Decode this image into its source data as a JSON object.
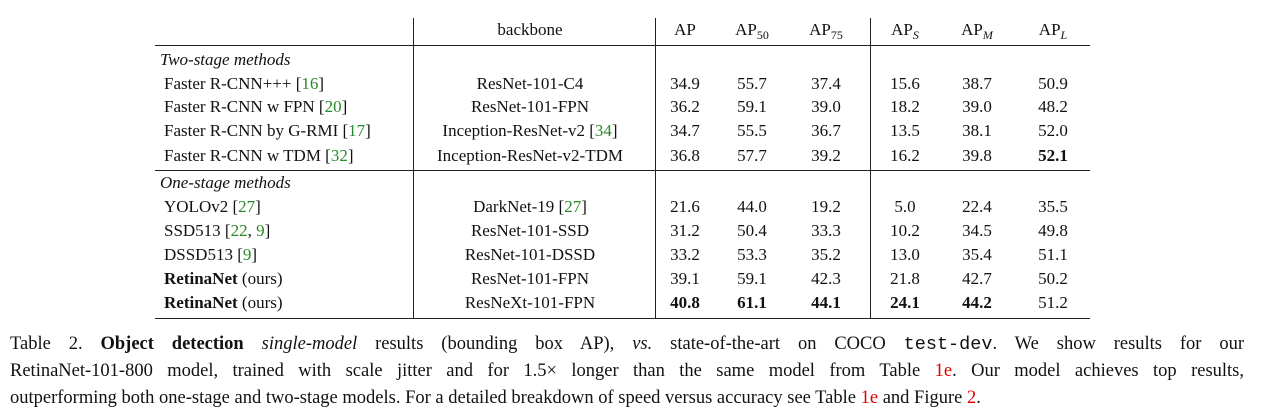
{
  "table": {
    "header": [
      [
        {
          "text": "backbone"
        }
      ],
      [
        {
          "text": "AP"
        }
      ],
      [
        {
          "text": "AP"
        },
        {
          "text": "50",
          "sub": true
        }
      ],
      [
        {
          "text": "AP"
        },
        {
          "text": "75",
          "sub": true
        }
      ],
      [
        {
          "text": "AP"
        },
        {
          "text": "S",
          "sub": true,
          "italic": true
        }
      ],
      [
        {
          "text": "AP"
        },
        {
          "text": "M",
          "sub": true,
          "italic": true
        }
      ],
      [
        {
          "text": "AP"
        },
        {
          "text": "L",
          "sub": true,
          "italic": true
        }
      ]
    ],
    "sections": [
      {
        "title": "Two-stage methods",
        "rows": [
          {
            "method": [
              {
                "text": "Faster R-CNN+++ ["
              },
              {
                "text": "16",
                "link": true
              },
              {
                "text": "]"
              }
            ],
            "backbone": [
              {
                "text": "ResNet-101-C4"
              }
            ],
            "values": [
              "34.9",
              "55.7",
              "37.4",
              "15.6",
              "38.7",
              "50.9"
            ],
            "bold": []
          },
          {
            "method": [
              {
                "text": "Faster R-CNN w FPN ["
              },
              {
                "text": "20",
                "link": true
              },
              {
                "text": "]"
              }
            ],
            "backbone": [
              {
                "text": "ResNet-101-FPN"
              }
            ],
            "values": [
              "36.2",
              "59.1",
              "39.0",
              "18.2",
              "39.0",
              "48.2"
            ],
            "bold": []
          },
          {
            "method": [
              {
                "text": "Faster R-CNN by G-RMI ["
              },
              {
                "text": "17",
                "link": true
              },
              {
                "text": "]"
              }
            ],
            "backbone": [
              {
                "text": "Inception-ResNet-v2 ["
              },
              {
                "text": "34",
                "link": true
              },
              {
                "text": "]"
              }
            ],
            "values": [
              "34.7",
              "55.5",
              "36.7",
              "13.5",
              "38.1",
              "52.0"
            ],
            "bold": []
          },
          {
            "method": [
              {
                "text": "Faster R-CNN w TDM ["
              },
              {
                "text": "32",
                "link": true
              },
              {
                "text": "]"
              }
            ],
            "backbone": [
              {
                "text": "Inception-ResNet-v2-TDM"
              }
            ],
            "values": [
              "36.8",
              "57.7",
              "39.2",
              "16.2",
              "39.8",
              "52.1"
            ],
            "bold": [
              5
            ]
          }
        ]
      },
      {
        "title": "One-stage methods",
        "rows": [
          {
            "method": [
              {
                "text": "YOLOv2 ["
              },
              {
                "text": "27",
                "link": true
              },
              {
                "text": "]"
              }
            ],
            "backbone": [
              {
                "text": "DarkNet-19 ["
              },
              {
                "text": "27",
                "link": true
              },
              {
                "text": "]"
              }
            ],
            "values": [
              "21.6",
              "44.0",
              "19.2",
              "5.0",
              "22.4",
              "35.5"
            ],
            "bold": []
          },
          {
            "method": [
              {
                "text": "SSD513 ["
              },
              {
                "text": "22",
                "link": true
              },
              {
                "text": ", "
              },
              {
                "text": "9",
                "link": true
              },
              {
                "text": "]"
              }
            ],
            "backbone": [
              {
                "text": "ResNet-101-SSD"
              }
            ],
            "values": [
              "31.2",
              "50.4",
              "33.3",
              "10.2",
              "34.5",
              "49.8"
            ],
            "bold": []
          },
          {
            "method": [
              {
                "text": "DSSD513 ["
              },
              {
                "text": "9",
                "link": true
              },
              {
                "text": "]"
              }
            ],
            "backbone": [
              {
                "text": "ResNet-101-DSSD"
              }
            ],
            "values": [
              "33.2",
              "53.3",
              "35.2",
              "13.0",
              "35.4",
              "51.1"
            ],
            "bold": []
          },
          {
            "method": [
              {
                "text": "RetinaNet",
                "bold": true
              },
              {
                "text": " (ours)"
              }
            ],
            "backbone": [
              {
                "text": "ResNet-101-FPN"
              }
            ],
            "values": [
              "39.1",
              "59.1",
              "42.3",
              "21.8",
              "42.7",
              "50.2"
            ],
            "bold": []
          },
          {
            "method": [
              {
                "text": "RetinaNet",
                "bold": true
              },
              {
                "text": " (ours)"
              }
            ],
            "backbone": [
              {
                "text": "ResNeXt-101-FPN"
              }
            ],
            "values": [
              "40.8",
              "61.1",
              "44.1",
              "24.1",
              "44.2",
              "51.2"
            ],
            "bold": [
              0,
              1,
              2,
              3,
              4
            ]
          }
        ]
      }
    ]
  },
  "caption": {
    "lines": [
      [
        {
          "text": "Table 2. "
        },
        {
          "text": "Object detection",
          "bold": true
        },
        {
          "text": " "
        },
        {
          "text": "single-model",
          "italic": true
        },
        {
          "text": " results (bounding box AP), "
        },
        {
          "text": "vs.",
          "italic": true
        },
        {
          "text": " state-of-the-art on COCO "
        },
        {
          "text": "test-dev",
          "mono": true
        },
        {
          "text": ". We show results for our"
        }
      ],
      [
        {
          "text": "RetinaNet-101-800 model, trained with scale jitter and for 1.5× longer than the same model from Table "
        },
        {
          "text": "1e",
          "red": true
        },
        {
          "text": ". Our model achieves top results,"
        }
      ],
      [
        {
          "text": "outperforming both one-stage and two-stage models. For a detailed breakdown of speed versus accuracy see Table "
        },
        {
          "text": "1e",
          "red": true
        },
        {
          "text": " and Figure "
        },
        {
          "text": "2",
          "red": true
        },
        {
          "text": "."
        }
      ]
    ]
  }
}
